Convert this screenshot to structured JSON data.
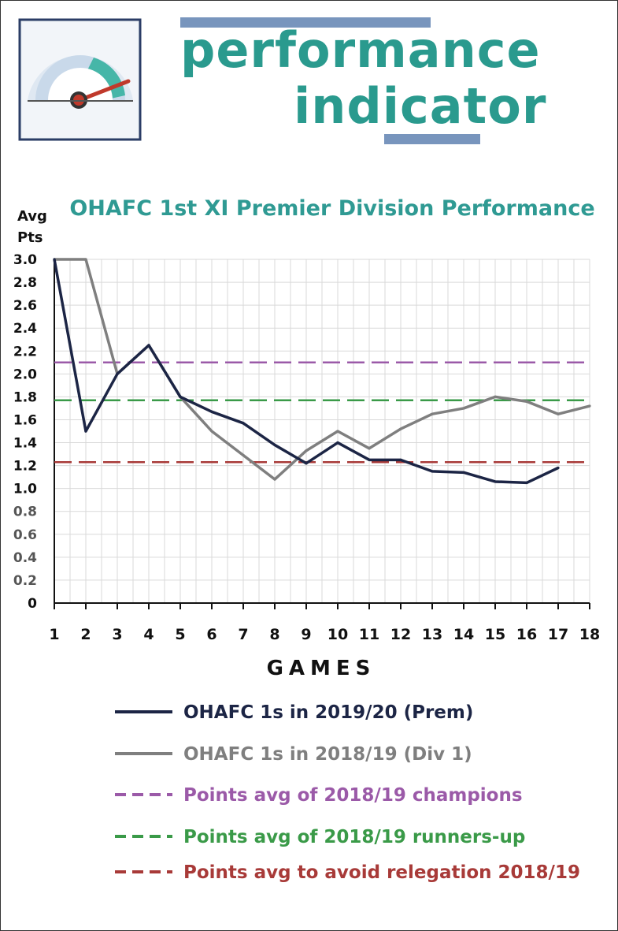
{
  "banner": {
    "title_line1": "performance",
    "title_line2": "indicator",
    "title_color": "#2a9a8e",
    "bar_color": "#7895bd",
    "logo_icon": "speedometer-gauge-icon"
  },
  "chart_data": {
    "type": "line",
    "title": "OHAFC 1st XI Premier Division Performance",
    "title_color": "#2f9a93",
    "ylabel_line1": "Avg",
    "ylabel_line2": "Pts",
    "xlabel": "GAMES",
    "ylim": [
      0,
      3.0
    ],
    "yticks": [
      "0",
      "0.2",
      "0.4",
      "0.6",
      "0.8",
      "1.0",
      "1.2",
      "1.4",
      "1.6",
      "1.8",
      "2.0",
      "2.2",
      "2.4",
      "2.6",
      "2.8",
      "3.0"
    ],
    "x": [
      1,
      2,
      3,
      4,
      5,
      6,
      7,
      8,
      9,
      10,
      11,
      12,
      13,
      14,
      15,
      16,
      17,
      18
    ],
    "grid": true,
    "series": [
      {
        "name": "OHAFC 1s in 2019/20 (Prem)",
        "style": "solid",
        "color": "#1c2545",
        "x": [
          1,
          2,
          3,
          4,
          5,
          6,
          7,
          8,
          9,
          10,
          11,
          12,
          13,
          14,
          15,
          16,
          17
        ],
        "values": [
          3.0,
          1.5,
          2.0,
          2.25,
          1.8,
          1.67,
          1.57,
          1.38,
          1.22,
          1.4,
          1.25,
          1.25,
          1.15,
          1.14,
          1.06,
          1.05,
          1.18
        ]
      },
      {
        "name": "OHAFC 1s in 2018/19 (Div 1)",
        "style": "solid",
        "color": "#7f7f7f",
        "x": [
          1,
          2,
          3,
          4,
          5,
          6,
          7,
          8,
          9,
          10,
          11,
          12,
          13,
          14,
          15,
          16,
          17,
          18
        ],
        "values": [
          3.0,
          3.0,
          2.0,
          2.25,
          1.8,
          1.5,
          1.29,
          1.08,
          1.33,
          1.5,
          1.35,
          1.52,
          1.65,
          1.7,
          1.8,
          1.76,
          1.65,
          1.72
        ]
      },
      {
        "name": "Points avg of 2018/19 champions",
        "style": "dashed",
        "color": "#9b5aa8",
        "value": 2.1
      },
      {
        "name": "Points avg of 2018/19 runners-up",
        "style": "dashed",
        "color": "#3a9a48",
        "value": 1.77
      },
      {
        "name": "Points avg to avoid relegation 2018/19",
        "style": "dashed",
        "color": "#a83a38",
        "value": 1.23
      }
    ],
    "legend_placement": "bottom"
  }
}
